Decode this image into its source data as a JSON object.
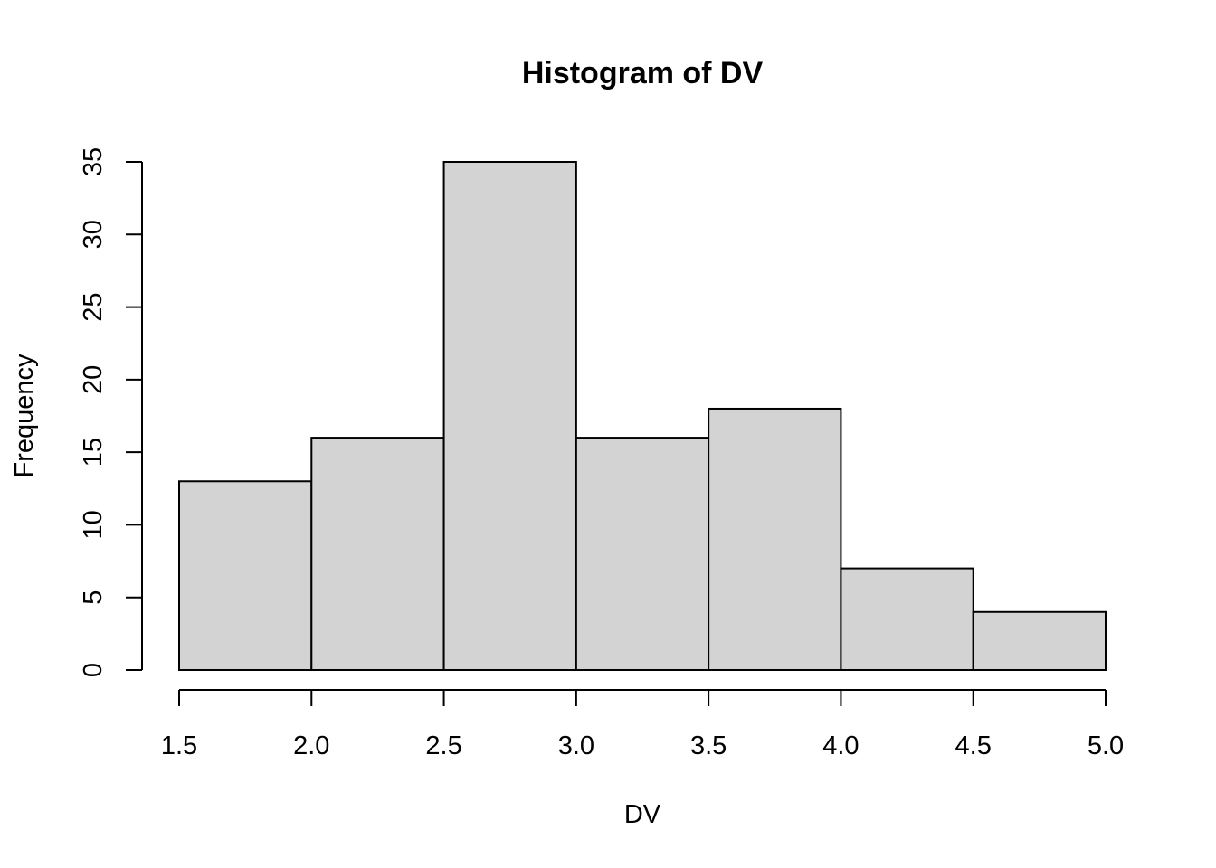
{
  "chart_data": {
    "type": "bar",
    "subtype": "histogram",
    "title": "Histogram of DV",
    "xlabel": "DV",
    "ylabel": "Frequency",
    "bins": [
      {
        "from": 1.5,
        "to": 2.0,
        "count": 13
      },
      {
        "from": 2.0,
        "to": 2.5,
        "count": 16
      },
      {
        "from": 2.5,
        "to": 3.0,
        "count": 35
      },
      {
        "from": 3.0,
        "to": 3.5,
        "count": 16
      },
      {
        "from": 3.5,
        "to": 4.0,
        "count": 18
      },
      {
        "from": 4.0,
        "to": 4.5,
        "count": 7
      },
      {
        "from": 4.5,
        "to": 5.0,
        "count": 4
      }
    ],
    "xlim": [
      1.5,
      5.0
    ],
    "ylim": [
      0,
      35
    ],
    "x_ticks": [
      "1.5",
      "2.0",
      "2.5",
      "3.0",
      "3.5",
      "4.0",
      "4.5",
      "5.0"
    ],
    "y_ticks": [
      "0",
      "5",
      "10",
      "15",
      "20",
      "25",
      "30",
      "35"
    ],
    "grid": false,
    "legend": "none",
    "colors": {
      "bar_fill": "#d3d3d3",
      "bar_stroke": "#000000",
      "background": "#ffffff"
    }
  }
}
